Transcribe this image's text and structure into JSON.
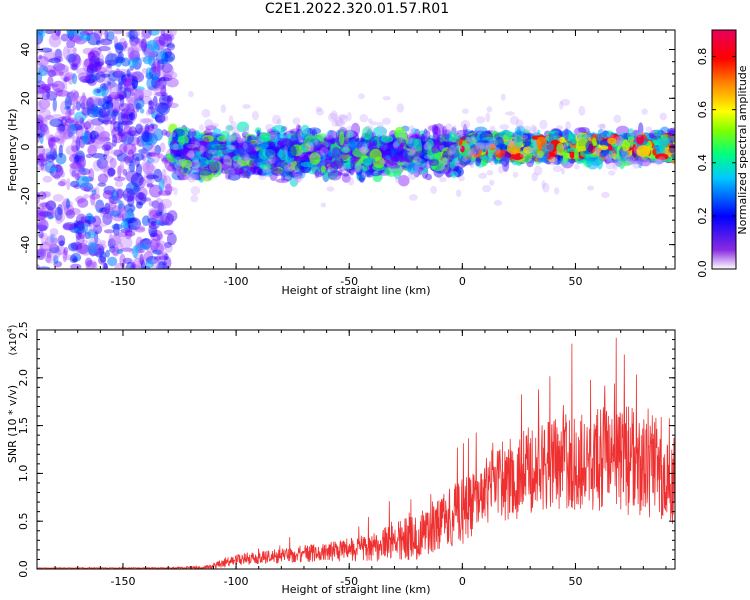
{
  "title": "C2E1.2022.320.01.57.R01",
  "colors": {
    "snr_line": "#ee3030",
    "spectrum_low": "#7b00ff",
    "spectrum_high": "#e8005c"
  },
  "chart_data": [
    {
      "type": "heatmap",
      "xlabel": "Height of straight line (km)",
      "ylabel": "Frequency (Hz)",
      "xlim": [
        -188,
        94
      ],
      "ylim": [
        -50,
        48
      ],
      "xticks": [
        -150,
        -100,
        -50,
        0,
        50
      ],
      "yticks": [
        -40,
        -20,
        0,
        20,
        40
      ],
      "grid": false,
      "colorbar": {
        "label": "Normalized spectral amplitude",
        "range": [
          0.0,
          0.9
        ],
        "ticks": [
          0.0,
          0.2,
          0.4,
          0.6,
          0.8
        ],
        "colormap": [
          "#ffffff",
          "#7b00ff",
          "#0000ff",
          "#00c8ff",
          "#00ff80",
          "#80ff00",
          "#ffff00",
          "#ff8000",
          "#ff0000",
          "#e8005c"
        ]
      },
      "regions": [
        {
          "x_range": [
            -188,
            -128
          ],
          "freq_range": [
            -50,
            48
          ],
          "amplitude": [
            0.05,
            0.3
          ]
        },
        {
          "x_range": [
            -128,
            0
          ],
          "freq_range": [
            -15,
            10
          ],
          "amplitude": [
            0.1,
            0.5
          ]
        },
        {
          "x_range": [
            0,
            94
          ],
          "freq_range": [
            -8,
            8
          ],
          "amplitude": [
            0.2,
            0.9
          ]
        }
      ]
    },
    {
      "type": "line",
      "xlabel": "Height of straight line (km)",
      "ylabel": "SNR (10 * v/v)",
      "yscale_label": "(x10",
      "yscale_exp": "4",
      "scale": 10000,
      "xlim": [
        -188,
        94
      ],
      "ylim": [
        0,
        2.5
      ],
      "xticks": [
        -150,
        -100,
        -50,
        0,
        50
      ],
      "yticks": [
        0.0,
        0.5,
        1.0,
        1.5,
        2.0,
        2.5
      ],
      "ytick_labels": [
        "0.0",
        "0.5",
        "1.0",
        "1.5",
        "2.0",
        "2.5"
      ],
      "grid": false,
      "envelope": {
        "x": [
          -188,
          -130,
          -112,
          -105,
          -100,
          -80,
          -60,
          -40,
          -20,
          0,
          20,
          40,
          60,
          80,
          94
        ],
        "y_mean": [
          0.01,
          0.01,
          0.02,
          0.07,
          0.1,
          0.14,
          0.18,
          0.22,
          0.35,
          0.6,
          0.95,
          1.1,
          1.15,
          1.1,
          1.0
        ],
        "y_spread": [
          0.003,
          0.005,
          0.02,
          0.05,
          0.06,
          0.08,
          0.1,
          0.15,
          0.25,
          0.35,
          0.45,
          0.5,
          0.55,
          0.6,
          0.55
        ]
      }
    }
  ]
}
